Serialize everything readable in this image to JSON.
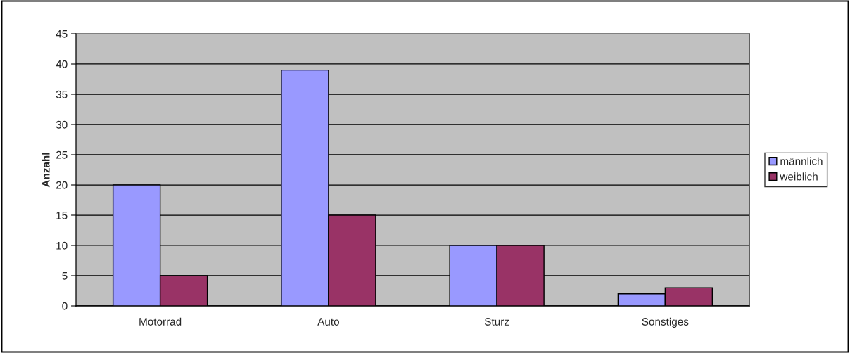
{
  "chart_data": {
    "type": "bar",
    "ylabel": "Anzahl",
    "categories": [
      "Motorrad",
      "Auto",
      "Sturz",
      "Sonstiges"
    ],
    "series": [
      {
        "name": "männlich",
        "color": "#9999ff",
        "values": [
          20,
          39,
          10,
          2
        ]
      },
      {
        "name": "weiblich",
        "color": "#993366",
        "values": [
          5,
          15,
          10,
          3
        ]
      }
    ],
    "ylim": [
      0,
      45
    ],
    "yticks": [
      0,
      5,
      10,
      15,
      20,
      25,
      30,
      35,
      40,
      45
    ],
    "grid": "y",
    "legend": "right"
  }
}
